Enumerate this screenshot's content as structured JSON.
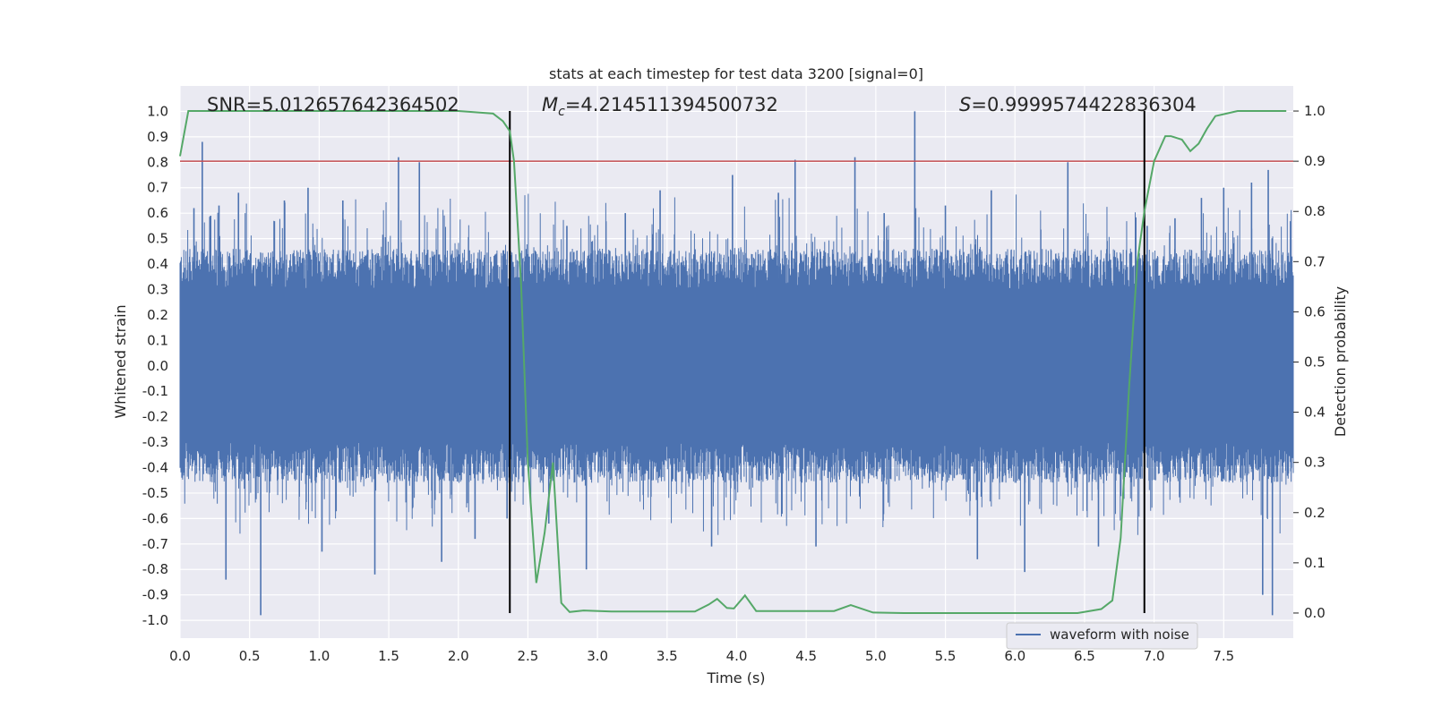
{
  "chart_data": {
    "type": "line",
    "title": "stats at each timestep for test data 3200 [signal=0]",
    "xlabel": "Time (s)",
    "ylabel_left": "Whitened strain",
    "ylabel_right": "Detection probability",
    "xlim": [
      0.0,
      8.0
    ],
    "ylim_left": [
      -1.07,
      1.1
    ],
    "ylim_right": [
      -0.05,
      1.05
    ],
    "x_ticks": [
      "0.0",
      "0.5",
      "1.0",
      "1.5",
      "2.0",
      "2.5",
      "3.0",
      "3.5",
      "4.0",
      "4.5",
      "5.0",
      "5.5",
      "6.0",
      "6.5",
      "7.0",
      "7.5"
    ],
    "y_left_ticks": [
      "1.0",
      "0.9",
      "0.8",
      "0.7",
      "0.6",
      "0.5",
      "0.4",
      "0.3",
      "0.2",
      "0.1",
      "0.0",
      "-0.1",
      "-0.2",
      "-0.3",
      "-0.4",
      "-0.5",
      "-0.6",
      "-0.7",
      "-0.8",
      "-0.9",
      "-1.0"
    ],
    "y_right_ticks": [
      "1.0",
      "0.9",
      "0.8",
      "0.7",
      "0.6",
      "0.5",
      "0.4",
      "0.3",
      "0.2",
      "0.1",
      "0.0"
    ],
    "grid": true,
    "annotations": {
      "snr": "SNR=5.012657642364502",
      "mc_symbol": "M",
      "mc_sub": "c",
      "mc_value": "=4.214511394500732",
      "s_symbol": "S",
      "s_value": "=0.9999574422836304"
    },
    "threshold_prob": 0.9,
    "vertical_lines_x": [
      2.37,
      6.93
    ],
    "legend": {
      "label": "waveform with noise",
      "position": "lower-right"
    },
    "colors": {
      "waveform": "#4c72b0",
      "probability": "#55a868",
      "threshold": "#c44e52",
      "vline": "#000000",
      "axes_bg": "#eaeaf2",
      "grid": "#ffffff"
    },
    "waveform_series": {
      "name": "waveform with noise",
      "x_range": [
        0.0,
        8.0
      ],
      "envelope_abs": 0.3,
      "spikes": [
        {
          "x": 0.1,
          "y": 0.62
        },
        {
          "x": 0.16,
          "y": 0.88
        },
        {
          "x": 0.22,
          "y": 0.59
        },
        {
          "x": 0.28,
          "y": 0.63
        },
        {
          "x": 0.33,
          "y": -0.84
        },
        {
          "x": 0.42,
          "y": 0.68
        },
        {
          "x": 0.58,
          "y": -0.98
        },
        {
          "x": 0.75,
          "y": 0.65
        },
        {
          "x": 0.92,
          "y": 0.7
        },
        {
          "x": 1.02,
          "y": -0.73
        },
        {
          "x": 1.17,
          "y": 0.65
        },
        {
          "x": 1.4,
          "y": -0.82
        },
        {
          "x": 1.57,
          "y": 0.82
        },
        {
          "x": 1.72,
          "y": 0.8
        },
        {
          "x": 1.88,
          "y": -0.77
        },
        {
          "x": 2.12,
          "y": -0.68
        },
        {
          "x": 2.35,
          "y": -0.6
        },
        {
          "x": 2.65,
          "y": -0.62
        },
        {
          "x": 2.78,
          "y": 0.55
        },
        {
          "x": 2.92,
          "y": -0.8
        },
        {
          "x": 3.2,
          "y": 0.6
        },
        {
          "x": 3.45,
          "y": 0.69
        },
        {
          "x": 3.82,
          "y": -0.71
        },
        {
          "x": 3.97,
          "y": 0.75
        },
        {
          "x": 4.3,
          "y": 0.68
        },
        {
          "x": 4.42,
          "y": 0.81
        },
        {
          "x": 4.57,
          "y": -0.71
        },
        {
          "x": 4.85,
          "y": 0.82
        },
        {
          "x": 5.06,
          "y": 0.6
        },
        {
          "x": 5.28,
          "y": 1.0
        },
        {
          "x": 5.5,
          "y": 0.63
        },
        {
          "x": 5.73,
          "y": -0.76
        },
        {
          "x": 5.83,
          "y": 0.69
        },
        {
          "x": 6.07,
          "y": -0.81
        },
        {
          "x": 6.38,
          "y": 0.8
        },
        {
          "x": 6.6,
          "y": -0.71
        },
        {
          "x": 6.95,
          "y": 0.55
        },
        {
          "x": 7.15,
          "y": 0.58
        },
        {
          "x": 7.34,
          "y": 0.66
        },
        {
          "x": 7.5,
          "y": 0.7
        },
        {
          "x": 7.7,
          "y": 0.72
        },
        {
          "x": 7.78,
          "y": -0.9
        },
        {
          "x": 7.82,
          "y": 0.77
        },
        {
          "x": 7.85,
          "y": -0.98
        }
      ]
    },
    "probability_series": {
      "name": "detection probability",
      "x": [
        0.0,
        0.06,
        0.15,
        0.5,
        1.0,
        1.5,
        2.0,
        2.25,
        2.32,
        2.37,
        2.4,
        2.45,
        2.5,
        2.56,
        2.62,
        2.68,
        2.74,
        2.8,
        2.9,
        3.1,
        3.4,
        3.7,
        3.8,
        3.86,
        3.93,
        3.98,
        4.06,
        4.14,
        4.35,
        4.7,
        4.82,
        4.98,
        5.2,
        5.7,
        6.1,
        6.45,
        6.62,
        6.7,
        6.76,
        6.82,
        6.88,
        6.93,
        7.0,
        7.08,
        7.12,
        7.2,
        7.26,
        7.32,
        7.38,
        7.44,
        7.52,
        7.6,
        7.7,
        7.8,
        7.95
      ],
      "y": [
        0.91,
        1.0,
        1.0,
        1.0,
        1.0,
        1.0,
        1.0,
        0.995,
        0.98,
        0.96,
        0.9,
        0.66,
        0.3,
        0.06,
        0.16,
        0.3,
        0.02,
        0.002,
        0.005,
        0.003,
        0.003,
        0.003,
        0.017,
        0.028,
        0.01,
        0.009,
        0.035,
        0.004,
        0.004,
        0.004,
        0.016,
        0.001,
        0.0,
        0.0,
        0.0,
        0.0,
        0.008,
        0.025,
        0.15,
        0.45,
        0.7,
        0.8,
        0.9,
        0.95,
        0.95,
        0.943,
        0.92,
        0.935,
        0.965,
        0.99,
        0.995,
        1.0,
        1.0,
        1.0,
        1.0
      ]
    }
  }
}
